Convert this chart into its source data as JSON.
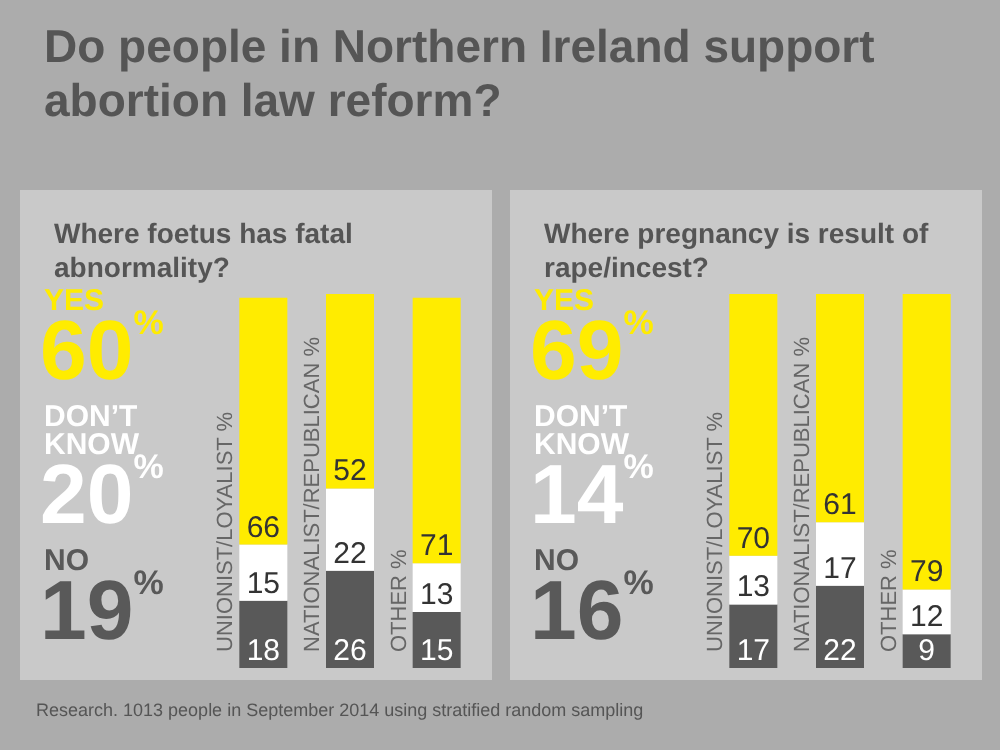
{
  "chart_data": [
    {
      "type": "bar",
      "title": "Do people in Northern Ireland support abortion law reform?",
      "subtitle": "Where foetus has fatal abnormality?",
      "categories": [
        "UNIONIST/LOYALIST %",
        "NATIONALIST/REPUBLICAN %",
        "OTHER %"
      ],
      "stacked": true,
      "data_labels": true,
      "series": [
        {
          "name": "NO",
          "color": "#595959",
          "values": [
            18,
            26,
            15
          ]
        },
        {
          "name": "DON’T KNOW",
          "color": "#ffffff",
          "values": [
            15,
            22,
            13
          ]
        },
        {
          "name": "YES",
          "color": "#ffec00",
          "values": [
            66,
            52,
            71
          ]
        }
      ],
      "annotations": [
        "19%",
        "20%",
        "60%",
        "Research. 1013 people in September 2014 using stratified random sampling"
      ]
    },
    {
      "type": "bar",
      "subtitle": "Where pregnancy is result of rape/incest?",
      "categories": [
        "UNIONIST/LOYALIST %",
        "NATIONALIST/REPUBLICAN %",
        "OTHER %"
      ],
      "stacked": true,
      "data_labels": true,
      "series": [
        {
          "name": "NO",
          "color": "#595959",
          "values": [
            17,
            22,
            9
          ]
        },
        {
          "name": "DON’T KNOW",
          "color": "#ffffff",
          "values": [
            13,
            17,
            12
          ]
        },
        {
          "name": "YES",
          "color": "#ffec00",
          "values": [
            70,
            61,
            79
          ]
        }
      ],
      "annotations": [
        "16%",
        "14%",
        "69%"
      ]
    }
  ]
}
